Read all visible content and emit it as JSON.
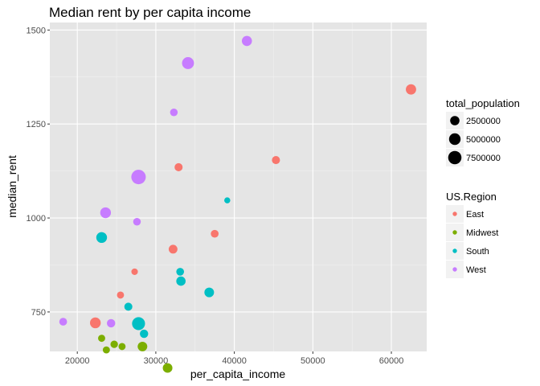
{
  "chart_data": {
    "type": "scatter",
    "title": "Median rent by per capita income",
    "xlabel": "per_capita_income",
    "ylabel": "median_rent",
    "xlim": [
      16500,
      64500
    ],
    "ylim": [
      645,
      1520
    ],
    "x_ticks": [
      20000,
      30000,
      40000,
      50000,
      60000
    ],
    "x_tick_labels": [
      "20000",
      "30000",
      "40000",
      "50000",
      "60000"
    ],
    "y_ticks": [
      750,
      1000,
      1250,
      1500
    ],
    "y_tick_labels": [
      "750",
      "1000",
      "1250",
      "1500"
    ],
    "grid": true,
    "background": "#e5e5e5",
    "size_legend": {
      "title": "total_population",
      "entries": [
        {
          "label": "2500000",
          "value": 2500000
        },
        {
          "label": "5000000",
          "value": 5000000
        },
        {
          "label": "7500000",
          "value": 7500000
        }
      ]
    },
    "color_legend": {
      "title": "US.Region",
      "entries": [
        {
          "label": "East",
          "color": "#F8766D"
        },
        {
          "label": "Midwest",
          "color": "#7CAE00"
        },
        {
          "label": "South",
          "color": "#00BFC4"
        },
        {
          "label": "West",
          "color": "#C77CFF"
        }
      ]
    },
    "series": [
      {
        "name": "East",
        "color": "#F8766D",
        "points": [
          {
            "x": 62500,
            "y": 1342,
            "pop": 3500000
          },
          {
            "x": 45300,
            "y": 1154,
            "pop": 1500000
          },
          {
            "x": 32900,
            "y": 1135,
            "pop": 1500000
          },
          {
            "x": 37500,
            "y": 958,
            "pop": 1300000
          },
          {
            "x": 32200,
            "y": 917,
            "pop": 2000000
          },
          {
            "x": 27300,
            "y": 857,
            "pop": 600000
          },
          {
            "x": 25500,
            "y": 795,
            "pop": 900000
          },
          {
            "x": 22300,
            "y": 721,
            "pop": 4000000
          }
        ]
      },
      {
        "name": "Midwest",
        "color": "#7CAE00",
        "points": [
          {
            "x": 23100,
            "y": 680,
            "pop": 900000
          },
          {
            "x": 24700,
            "y": 664,
            "pop": 1100000
          },
          {
            "x": 25700,
            "y": 658,
            "pop": 900000
          },
          {
            "x": 23700,
            "y": 649,
            "pop": 900000
          },
          {
            "x": 28300,
            "y": 658,
            "pop": 2800000
          },
          {
            "x": 31500,
            "y": 601,
            "pop": 2800000
          }
        ]
      },
      {
        "name": "South",
        "color": "#00BFC4",
        "points": [
          {
            "x": 39100,
            "y": 1047,
            "pop": 400000
          },
          {
            "x": 23100,
            "y": 948,
            "pop": 4000000
          },
          {
            "x": 33100,
            "y": 857,
            "pop": 1300000
          },
          {
            "x": 33200,
            "y": 832,
            "pop": 2500000
          },
          {
            "x": 36800,
            "y": 802,
            "pop": 2800000
          },
          {
            "x": 26500,
            "y": 764,
            "pop": 1500000
          },
          {
            "x": 27800,
            "y": 719,
            "pop": 7000000
          },
          {
            "x": 28500,
            "y": 692,
            "pop": 1700000
          }
        ]
      },
      {
        "name": "West",
        "color": "#C77CFF",
        "points": [
          {
            "x": 41600,
            "y": 1471,
            "pop": 3300000
          },
          {
            "x": 34100,
            "y": 1412,
            "pop": 5500000
          },
          {
            "x": 32300,
            "y": 1281,
            "pop": 1200000
          },
          {
            "x": 27800,
            "y": 1109,
            "pop": 9500000
          },
          {
            "x": 23600,
            "y": 1014,
            "pop": 4000000
          },
          {
            "x": 27600,
            "y": 990,
            "pop": 1200000
          },
          {
            "x": 18200,
            "y": 724,
            "pop": 1300000
          },
          {
            "x": 24300,
            "y": 720,
            "pop": 1700000
          }
        ]
      }
    ]
  }
}
